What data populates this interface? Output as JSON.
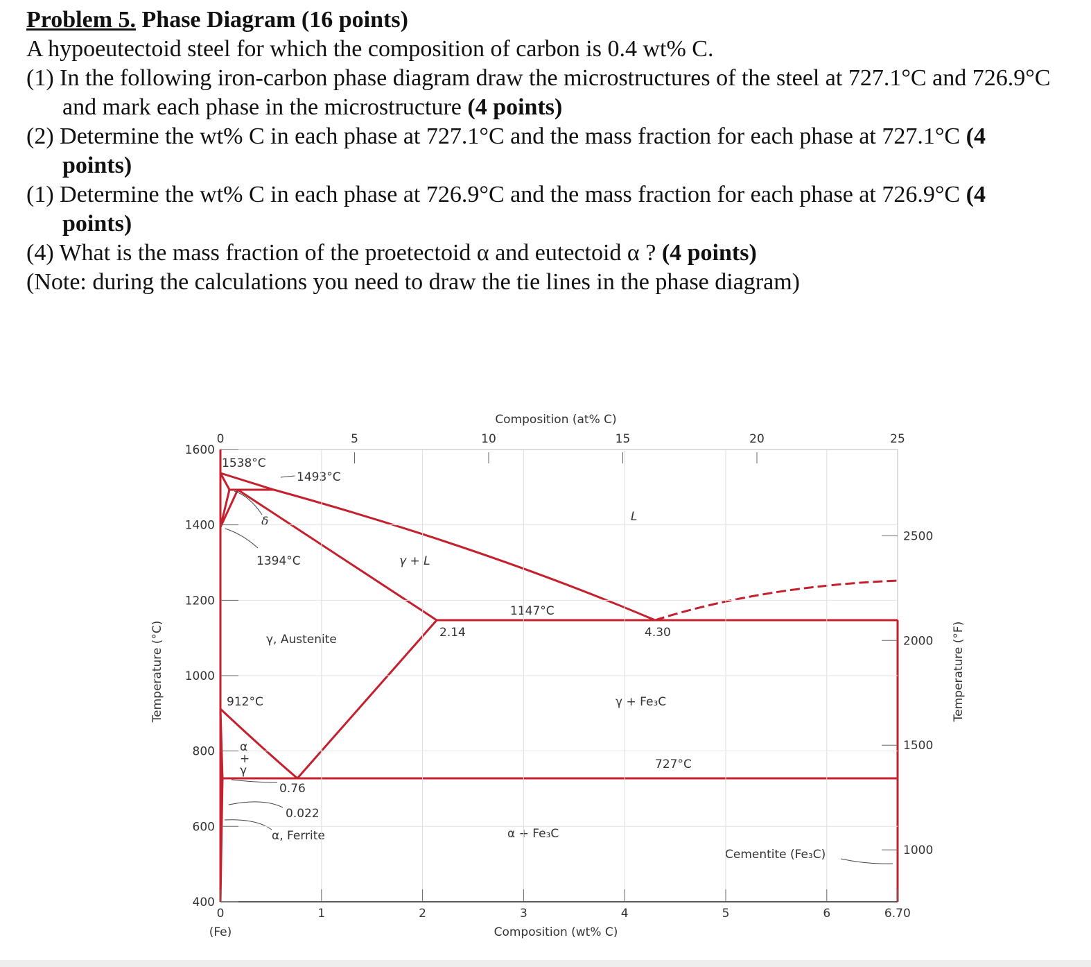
{
  "header": {
    "number": "Problem 5.",
    "title": "Phase Diagram (16 points)"
  },
  "intro": "A hypoeutectoid steel for which the composition of carbon is 0.4 wt% C.",
  "items": [
    {
      "label": "(1)",
      "text": "In the following iron-carbon phase diagram draw the microstructures of the steel at 727.1°C and 726.9°C and mark each phase in the microstructure",
      "points": "(4 points)"
    },
    {
      "label": "(2)",
      "text": "Determine the wt% C in each phase at 727.1°C and the mass fraction for each phase at 727.1°C",
      "points": "(4 points)"
    },
    {
      "label": "(1)",
      "text": "Determine the wt% C in each phase at 726.9°C and the mass fraction for each phase at 726.9°C",
      "points": "(4 points)"
    },
    {
      "label": "(4)",
      "text": "What is the mass fraction of the proetectoid α and eutectoid α ?",
      "points": "(4 points)"
    }
  ],
  "note": "(Note: during the calculations you need to draw the tie lines in the phase diagram)",
  "diagram": {
    "top_axis_title": "Composition (at% C)",
    "bottom_axis_title": "Composition (wt% C)",
    "left_axis_title": "Temperature (°C)",
    "right_axis_title": "Temperature (°F)",
    "fe_label": "(Fe)",
    "xticks": [
      0,
      1,
      2,
      3,
      4,
      5,
      6,
      {
        "value": 6.7,
        "label": "6.70"
      }
    ],
    "at_ticks": [
      0,
      5,
      10,
      15,
      20,
      25
    ],
    "yticks": [
      400,
      600,
      800,
      1000,
      1200,
      1400,
      1600
    ],
    "y2ticks": [
      1000,
      1500,
      2000,
      2500
    ],
    "annotations": {
      "t1538": "1538°C",
      "t1493": "1493°C",
      "delta": "δ",
      "t1394": "1394°C",
      "liquid": "L",
      "gamma_l": "γ + L",
      "t1147": "1147°C",
      "c214": "2.14",
      "c430": "4.30",
      "austenite": "γ, Austenite",
      "gamma_fe3c": "γ + Fe₃C",
      "t912": "912°C",
      "alpha": "α",
      "plus": "+",
      "gamma": "γ",
      "t727": "727°C",
      "c076": "0.76",
      "c0022": "0.022",
      "ferrite": "α, Ferrite",
      "alpha_fe3c": "α + Fe₃C",
      "cementite": "Cementite (Fe₃C)"
    }
  }
}
